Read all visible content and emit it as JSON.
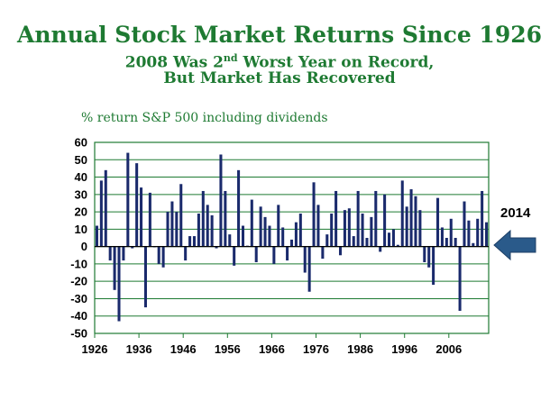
{
  "title": "Annual Stock Market Returns Since 1926",
  "subtitle_line1_a": "2008 Was 2",
  "subtitle_line1_sup": "nd",
  "subtitle_line1_b": " Worst Year on Record,",
  "subtitle_line2": "But Market Has Recovered",
  "colors": {
    "title": "#1e7a32",
    "bar": "#1a2a6c",
    "grid": "#1e7a32",
    "arrow": "#2a5a8a"
  },
  "chart_data": {
    "type": "bar",
    "ylabel": "% return S&P 500 including dividends",
    "ylim": [
      -50,
      60
    ],
    "yticks": [
      "60",
      "50",
      "40",
      "30",
      "20",
      "10",
      "0",
      "-10",
      "-20",
      "-30",
      "-40",
      "-50"
    ],
    "xticks": [
      "1926",
      "1936",
      "1946",
      "1956",
      "1966",
      "1976",
      "1986",
      "1996",
      "2006"
    ],
    "grid": true,
    "callout": "2014",
    "x": [
      1926,
      1927,
      1928,
      1929,
      1930,
      1931,
      1932,
      1933,
      1934,
      1935,
      1936,
      1937,
      1938,
      1939,
      1940,
      1941,
      1942,
      1943,
      1944,
      1945,
      1946,
      1947,
      1948,
      1949,
      1950,
      1951,
      1952,
      1953,
      1954,
      1955,
      1956,
      1957,
      1958,
      1959,
      1960,
      1961,
      1962,
      1963,
      1964,
      1965,
      1966,
      1967,
      1968,
      1969,
      1970,
      1971,
      1972,
      1973,
      1974,
      1975,
      1976,
      1977,
      1978,
      1979,
      1980,
      1981,
      1982,
      1983,
      1984,
      1985,
      1986,
      1987,
      1988,
      1989,
      1990,
      1991,
      1992,
      1993,
      1994,
      1995,
      1996,
      1997,
      1998,
      1999,
      2000,
      2001,
      2002,
      2003,
      2004,
      2005,
      2006,
      2007,
      2008,
      2009,
      2010,
      2011,
      2012,
      2013,
      2014
    ],
    "values": [
      12,
      38,
      44,
      -8,
      -25,
      -43,
      -8,
      54,
      -1,
      48,
      34,
      -35,
      31,
      -0.4,
      -10,
      -12,
      20,
      26,
      20,
      36,
      -8,
      6,
      6,
      19,
      32,
      24,
      18,
      -1,
      53,
      32,
      7,
      -11,
      44,
      12,
      0.5,
      27,
      -9,
      23,
      17,
      12,
      -10,
      24,
      11,
      -8,
      4,
      14,
      19,
      -15,
      -26,
      37,
      24,
      -7,
      7,
      19,
      32,
      -5,
      21,
      22,
      6,
      32,
      19,
      5,
      17,
      32,
      -3,
      30,
      8,
      10,
      1,
      38,
      23,
      33,
      29,
      21,
      -9,
      -12,
      -22,
      28,
      11,
      5,
      16,
      5,
      -37,
      26,
      15,
      2,
      16,
      32,
      14
    ]
  }
}
